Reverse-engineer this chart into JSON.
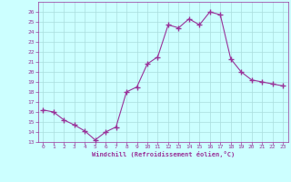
{
  "x": [
    0,
    1,
    2,
    3,
    4,
    5,
    6,
    7,
    8,
    9,
    10,
    11,
    12,
    13,
    14,
    15,
    16,
    17,
    18,
    19,
    20,
    21,
    22,
    23
  ],
  "y": [
    16.2,
    16.0,
    15.2,
    14.7,
    14.1,
    13.2,
    14.0,
    14.5,
    18.0,
    18.5,
    20.8,
    21.5,
    24.7,
    24.4,
    25.3,
    24.7,
    26.0,
    25.7,
    21.3,
    20.0,
    19.2,
    19.0,
    18.8,
    18.6
  ],
  "line_color": "#993399",
  "marker": "+",
  "marker_size": 4,
  "marker_lw": 1.0,
  "bg_color": "#ccffff",
  "grid_color": "#aadddd",
  "xlabel": "Windchill (Refroidissement éolien,°C)",
  "xlabel_color": "#993399",
  "tick_color": "#993399",
  "ylim": [
    13,
    27
  ],
  "xlim": [
    -0.5,
    23.5
  ],
  "yticks": [
    13,
    14,
    15,
    16,
    17,
    18,
    19,
    20,
    21,
    22,
    23,
    24,
    25,
    26
  ],
  "xticks": [
    0,
    1,
    2,
    3,
    4,
    5,
    6,
    7,
    8,
    9,
    10,
    11,
    12,
    13,
    14,
    15,
    16,
    17,
    18,
    19,
    20,
    21,
    22,
    23
  ]
}
